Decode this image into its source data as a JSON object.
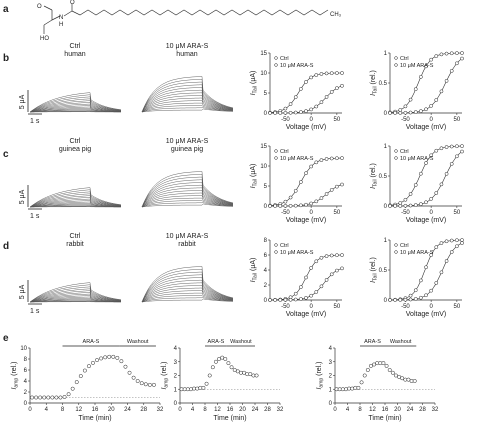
{
  "panel_labels": [
    "a",
    "b",
    "c",
    "d",
    "e"
  ],
  "molecule": {
    "label_ch3": "CH₃",
    "label_o": "O",
    "label_nh": "N",
    "label_h": "H",
    "label_ho": "HO"
  },
  "trace_labels": {
    "scale_current": "5 μA",
    "scale_time": "1 s"
  },
  "rows": [
    {
      "id": "b",
      "ctrl_title": [
        "Ctrl",
        "human"
      ],
      "drug_title": [
        "10 μM ARA-S",
        "human"
      ]
    },
    {
      "id": "c",
      "ctrl_title": [
        "Ctrl",
        "guinea pig"
      ],
      "drug_title": [
        "10 μM ARA-S",
        "guinea pig"
      ]
    },
    {
      "id": "d",
      "ctrl_title": [
        "Ctrl",
        "rabbit"
      ],
      "drug_title": [
        "10 μM ARA-S",
        "rabbit"
      ]
    }
  ],
  "labels": {
    "legend_ctrl": "Ctrl",
    "legend_drug": "10 μM ARA-S",
    "voltage_label": "Voltage (mV)",
    "ylabel_abs": "I_Tail (μA)",
    "ylabel_rel": "I_Tail (rel.)",
    "time_label": "Time (min)",
    "iamp_label": "I_amp (rel.)",
    "ara_s": "ARA-S",
    "washout": "Washout"
  },
  "chart_data": [
    {
      "id": "b-abs",
      "type": "scatter",
      "xlim": [
        -80,
        60
      ],
      "ylim": [
        0,
        15
      ],
      "xticks": [
        -50,
        0,
        50
      ],
      "yticks": [
        0,
        5,
        10,
        15
      ],
      "series": [
        {
          "name": "Ctrl",
          "v50": -25,
          "k": 12,
          "amp": 10
        },
        {
          "name": "10 μM ARA-S",
          "v50": 28,
          "k": 14,
          "amp": 7.5
        }
      ]
    },
    {
      "id": "b-rel",
      "type": "scatter",
      "xlim": [
        -80,
        60
      ],
      "ylim": [
        0,
        1
      ],
      "xticks": [
        -50,
        0,
        50
      ],
      "yticks": [
        0,
        0.5,
        1.0
      ],
      "series": [
        {
          "name": "Ctrl",
          "v50": -25,
          "k": 12,
          "amp": 1
        },
        {
          "name": "10 μM ARA-S",
          "v50": 28,
          "k": 14,
          "amp": 1
        }
      ]
    },
    {
      "id": "c-abs",
      "type": "scatter",
      "xlim": [
        -80,
        60
      ],
      "ylim": [
        0,
        15
      ],
      "xticks": [
        -50,
        0,
        50
      ],
      "yticks": [
        0,
        5,
        10,
        15
      ],
      "series": [
        {
          "name": "Ctrl",
          "v50": -20,
          "k": 13,
          "amp": 12
        },
        {
          "name": "10 μM ARA-S",
          "v50": 30,
          "k": 14,
          "amp": 6
        }
      ]
    },
    {
      "id": "c-rel",
      "type": "scatter",
      "xlim": [
        -80,
        60
      ],
      "ylim": [
        0,
        1
      ],
      "xticks": [
        -50,
        0,
        50
      ],
      "yticks": [
        0,
        0.5,
        1.0
      ],
      "series": [
        {
          "name": "Ctrl",
          "v50": -22,
          "k": 13,
          "amp": 1
        },
        {
          "name": "10 μM ARA-S",
          "v50": 28,
          "k": 14,
          "amp": 1
        }
      ]
    },
    {
      "id": "d-abs",
      "type": "scatter",
      "xlim": [
        -80,
        60
      ],
      "ylim": [
        0,
        8
      ],
      "xticks": [
        -50,
        0,
        50
      ],
      "yticks": [
        0,
        2,
        4,
        6,
        8
      ],
      "series": [
        {
          "name": "Ctrl",
          "v50": -10,
          "k": 11,
          "amp": 6
        },
        {
          "name": "10 μM ARA-S",
          "v50": 25,
          "k": 13,
          "amp": 4.5
        }
      ]
    },
    {
      "id": "d-rel",
      "type": "scatter",
      "xlim": [
        -80,
        60
      ],
      "ylim": [
        0,
        1
      ],
      "xticks": [
        -50,
        0,
        50
      ],
      "yticks": [
        0,
        0.5,
        1.0
      ],
      "series": [
        {
          "name": "Ctrl",
          "v50": -12,
          "k": 11,
          "amp": 1
        },
        {
          "name": "10 μM ARA-S",
          "v50": 22,
          "k": 13,
          "amp": 1
        }
      ]
    },
    {
      "id": "e1",
      "type": "scatter",
      "xlim": [
        0,
        32
      ],
      "ylim": [
        0,
        10
      ],
      "xticks": [
        0,
        4,
        8,
        12,
        16,
        20,
        24,
        28,
        32
      ],
      "yticks": [
        0,
        2,
        4,
        6,
        8,
        10
      ],
      "baseline": 1,
      "ara_s_start": 8,
      "ara_s_end": 22,
      "washout_end": 31,
      "points": [
        [
          0.5,
          1
        ],
        [
          1.5,
          1
        ],
        [
          2.5,
          1
        ],
        [
          3.5,
          1
        ],
        [
          4.5,
          1
        ],
        [
          5.5,
          1
        ],
        [
          6.5,
          1
        ],
        [
          7.5,
          1
        ],
        [
          8.5,
          1.1
        ],
        [
          9.5,
          1.6
        ],
        [
          10.5,
          2.6
        ],
        [
          11.5,
          3.8
        ],
        [
          12.5,
          4.9
        ],
        [
          13.5,
          5.9
        ],
        [
          14.5,
          6.7
        ],
        [
          15.5,
          7.3
        ],
        [
          16.5,
          7.8
        ],
        [
          17.5,
          8.1
        ],
        [
          18.5,
          8.3
        ],
        [
          19.5,
          8.4
        ],
        [
          20.5,
          8.4
        ],
        [
          21.5,
          8.2
        ],
        [
          22.5,
          7.6
        ],
        [
          23.5,
          6.6
        ],
        [
          24.5,
          5.5
        ],
        [
          25.5,
          4.6
        ],
        [
          26.5,
          4.0
        ],
        [
          27.5,
          3.6
        ],
        [
          28.5,
          3.4
        ],
        [
          29.5,
          3.3
        ],
        [
          30.5,
          3.3
        ]
      ]
    },
    {
      "id": "e2",
      "type": "scatter",
      "xlim": [
        0,
        32
      ],
      "ylim": [
        0,
        4
      ],
      "xticks": [
        0,
        4,
        8,
        12,
        16,
        20,
        24,
        28,
        32
      ],
      "yticks": [
        0,
        1,
        2,
        3,
        4
      ],
      "baseline": 1,
      "ara_s_start": 8,
      "ara_s_end": 15,
      "washout_end": 24,
      "points": [
        [
          0.5,
          1
        ],
        [
          1.5,
          1
        ],
        [
          2.5,
          1
        ],
        [
          3.5,
          1
        ],
        [
          4.5,
          1.05
        ],
        [
          5.5,
          1.05
        ],
        [
          6.5,
          1.1
        ],
        [
          7.5,
          1.1
        ],
        [
          8.5,
          1.4
        ],
        [
          9.5,
          2.0
        ],
        [
          10.5,
          2.6
        ],
        [
          11.5,
          3.0
        ],
        [
          12.5,
          3.2
        ],
        [
          13.5,
          3.3
        ],
        [
          14.5,
          3.2
        ],
        [
          15.5,
          2.9
        ],
        [
          16.5,
          2.6
        ],
        [
          17.5,
          2.4
        ],
        [
          18.5,
          2.3
        ],
        [
          19.5,
          2.2
        ],
        [
          20.5,
          2.2
        ],
        [
          21.5,
          2.1
        ],
        [
          22.5,
          2.1
        ],
        [
          23.5,
          2.0
        ],
        [
          24.5,
          2.0
        ]
      ]
    },
    {
      "id": "e3",
      "type": "scatter",
      "xlim": [
        0,
        32
      ],
      "ylim": [
        0,
        4
      ],
      "xticks": [
        0,
        4,
        8,
        12,
        16,
        20,
        24,
        28,
        32
      ],
      "yticks": [
        0,
        1,
        2,
        3,
        4
      ],
      "baseline": 1,
      "ara_s_start": 8,
      "ara_s_end": 16,
      "washout_end": 26,
      "points": [
        [
          0.5,
          1
        ],
        [
          1.5,
          1
        ],
        [
          2.5,
          1
        ],
        [
          3.5,
          1
        ],
        [
          4.5,
          1.05
        ],
        [
          5.5,
          1.05
        ],
        [
          6.5,
          1.1
        ],
        [
          7.5,
          1.1
        ],
        [
          8.5,
          1.5
        ],
        [
          9.5,
          2.0
        ],
        [
          10.5,
          2.4
        ],
        [
          11.5,
          2.7
        ],
        [
          12.5,
          2.8
        ],
        [
          13.5,
          2.9
        ],
        [
          14.5,
          2.9
        ],
        [
          15.5,
          2.9
        ],
        [
          16.5,
          2.7
        ],
        [
          17.5,
          2.4
        ],
        [
          18.5,
          2.2
        ],
        [
          19.5,
          2.0
        ],
        [
          20.5,
          1.9
        ],
        [
          21.5,
          1.8
        ],
        [
          22.5,
          1.7
        ],
        [
          23.5,
          1.7
        ],
        [
          24.5,
          1.6
        ],
        [
          25.5,
          1.6
        ]
      ]
    }
  ]
}
